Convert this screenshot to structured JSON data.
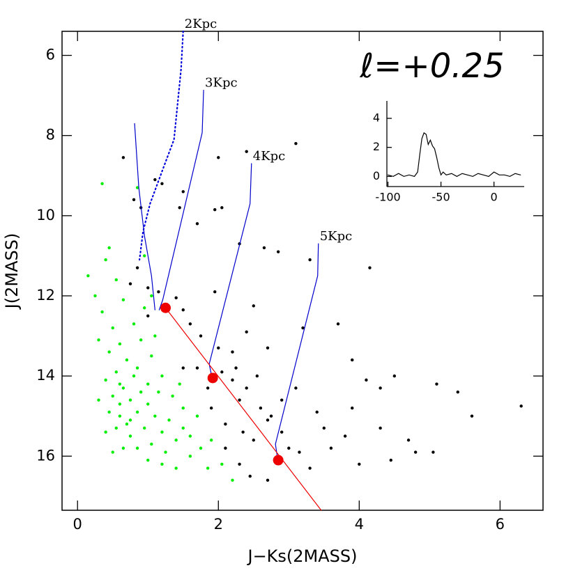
{
  "chart_data": [
    {
      "type": "scatter",
      "title": "ℓ=+0.25",
      "xlabel": "J−Ks(2MASS)",
      "ylabel": "J(2MASS)",
      "xlim": [
        -0.22,
        6.61
      ],
      "ylim": [
        5.4,
        17.35
      ],
      "y_inverted": true,
      "xticks": [
        0,
        2,
        4,
        6
      ],
      "yticks": [
        6,
        8,
        10,
        12,
        14,
        16
      ],
      "series": [
        {
          "kind": "scatter",
          "color": "#000000",
          "x": [
            0.65,
            0.8,
            0.9,
            1.1,
            1.2,
            1.5,
            1.45,
            2.0,
            3.1,
            2.4,
            1.7,
            2.05,
            1.95,
            2.3,
            2.65,
            2.85,
            3.3,
            4.15,
            0.85,
            0.75,
            1.0,
            1.15,
            1.4,
            1.5,
            1.0,
            1.95,
            2.5,
            2.4,
            1.6,
            1.75,
            2.0,
            2.2,
            2.7,
            3.2,
            3.7,
            1.5,
            1.7,
            2.05,
            2.2,
            2.4,
            2.3,
            1.9,
            2.1,
            2.6,
            2.7,
            2.5,
            2.9,
            3.1,
            3.4,
            3.0,
            3.5,
            3.9,
            3.9,
            4.1,
            4.3,
            4.5,
            4.3,
            4.7,
            5.1,
            5.05,
            5.4,
            5.6,
            6.3,
            4.0,
            4.45,
            3.3,
            2.7,
            2.3,
            2.1,
            2.45,
            3.6,
            3.8,
            4.8,
            2.75,
            2.55,
            2.25,
            1.85,
            2.9,
            3.15,
            2.35
          ],
          "y": [
            8.55,
            9.6,
            9.8,
            9.1,
            9.2,
            9.4,
            9.8,
            8.55,
            8.2,
            8.4,
            10.2,
            9.8,
            9.85,
            10.7,
            10.8,
            10.9,
            11.1,
            11.3,
            11.3,
            11.7,
            11.8,
            11.9,
            12.05,
            12.35,
            12.5,
            11.9,
            12.25,
            12.9,
            12.7,
            13.0,
            13.3,
            13.4,
            13.3,
            12.8,
            12.7,
            13.8,
            13.8,
            13.9,
            14.1,
            14.3,
            14.6,
            14.8,
            15.2,
            14.8,
            15.1,
            15.6,
            15.4,
            14.3,
            14.9,
            15.8,
            15.3,
            13.6,
            14.8,
            14.1,
            14.3,
            14.0,
            15.3,
            15.6,
            14.2,
            15.9,
            14.4,
            15.0,
            14.75,
            16.2,
            16.1,
            16.3,
            16.6,
            16.2,
            15.8,
            16.5,
            15.8,
            15.5,
            15.9,
            15.0,
            14.0,
            13.8,
            14.3,
            14.6,
            15.9,
            15.4
          ]
        },
        {
          "kind": "scatter",
          "color": "#00ee00",
          "x": [
            0.35,
            0.45,
            0.4,
            0.15,
            0.25,
            0.35,
            0.5,
            0.3,
            0.45,
            0.6,
            0.7,
            0.55,
            0.4,
            0.65,
            0.8,
            0.5,
            0.6,
            0.75,
            0.9,
            0.45,
            0.6,
            0.7,
            0.85,
            1.0,
            1.1,
            0.55,
            0.75,
            0.95,
            1.2,
            1.3,
            0.65,
            0.85,
            1.05,
            1.25,
            1.4,
            1.5,
            1.6,
            1.0,
            1.2,
            1.75,
            1.85,
            2.05,
            2.2,
            1.4,
            0.9,
            1.05,
            1.2,
            1.35,
            1.5,
            1.7,
            0.3,
            0.4,
            0.5,
            0.95,
            0.8,
            1.1,
            0.65,
            0.55,
            1.0,
            0.75,
            0.6,
            0.85,
            1.15,
            1.45,
            1.6,
            1.9,
            0.85,
            0.95,
            1.05
          ],
          "y": [
            9.2,
            10.8,
            11.1,
            11.5,
            12.0,
            12.4,
            12.8,
            13.1,
            13.4,
            13.2,
            13.6,
            13.9,
            14.1,
            14.3,
            14.0,
            14.5,
            14.7,
            14.6,
            14.4,
            14.9,
            15.0,
            15.2,
            14.9,
            14.7,
            15.0,
            15.3,
            15.5,
            15.3,
            15.4,
            15.1,
            15.8,
            15.8,
            15.7,
            15.9,
            15.6,
            15.3,
            16.0,
            16.1,
            16.2,
            15.8,
            16.3,
            16.2,
            16.6,
            16.3,
            13.1,
            13.5,
            14.0,
            14.5,
            14.8,
            15.0,
            14.6,
            15.4,
            15.9,
            12.3,
            12.7,
            13.0,
            12.1,
            11.6,
            14.2,
            15.1,
            14.2,
            13.8,
            14.4,
            14.2,
            15.5,
            15.6,
            9.3,
            11.0,
            12.0
          ]
        },
        {
          "kind": "line",
          "style": "dotted",
          "color": "#0000dd",
          "label": "2Kpc",
          "x": [
            1.5,
            1.47,
            1.37,
            1.22,
            1.03,
            0.93,
            0.88
          ],
          "y": [
            5.4,
            6.35,
            8.1,
            8.8,
            9.7,
            10.4,
            11.1
          ]
        },
        {
          "kind": "line",
          "style": "solid",
          "color": "#0000cc",
          "x": [
            0.81,
            0.87,
            0.95,
            1.05,
            1.1
          ],
          "y": [
            7.7,
            9.3,
            10.5,
            11.5,
            12.35
          ]
        },
        {
          "kind": "line",
          "style": "solid",
          "color": "#0000cc",
          "label": "3Kpc",
          "x": [
            1.79,
            1.77,
            1.21,
            1.16
          ],
          "y": [
            6.87,
            7.93,
            12.1,
            12.35
          ]
        },
        {
          "kind": "line",
          "style": "solid",
          "color": "#0000cc",
          "label": "4Kpc",
          "x": [
            2.47,
            2.45,
            1.87,
            1.91
          ],
          "y": [
            8.7,
            9.7,
            13.7,
            14.05
          ]
        },
        {
          "kind": "line",
          "style": "solid",
          "color": "#0000cc",
          "label": "5Kpc",
          "x": [
            3.42,
            3.41,
            2.81,
            2.84
          ],
          "y": [
            10.7,
            11.5,
            15.7,
            16.05
          ]
        },
        {
          "kind": "line",
          "style": "solid",
          "color": "#ee0000",
          "x": [
            1.25,
            3.46
          ],
          "y": [
            12.3,
            17.35
          ]
        },
        {
          "kind": "marker",
          "color": "#ee0000",
          "x": [
            1.25,
            1.92,
            2.85
          ],
          "y": [
            12.3,
            14.05,
            16.1
          ]
        }
      ]
    },
    {
      "type": "line",
      "xlim": [
        -101,
        28.5
      ],
      "ylim": [
        -0.7,
        5.2
      ],
      "xticks": [
        -100,
        -50,
        0
      ],
      "yticks": [
        0,
        2,
        4
      ],
      "series": [
        {
          "kind": "line",
          "style": "solid",
          "color": "#000000",
          "x": [
            -100,
            -95,
            -90,
            -85,
            -80,
            -75,
            -72,
            -70,
            -68,
            -66,
            -64,
            -62,
            -60,
            -58,
            -56,
            -54,
            -52,
            -50,
            -48,
            -45,
            -40,
            -35,
            -30,
            -25,
            -20,
            -15,
            -10,
            -5,
            0,
            5,
            10,
            15,
            20,
            25
          ],
          "y": [
            0.1,
            0,
            0.2,
            0,
            0.1,
            0,
            0.3,
            1.5,
            2.6,
            3.0,
            2.9,
            2.2,
            2.5,
            2.1,
            1.9,
            1.3,
            0.6,
            0.1,
            0.3,
            0.1,
            0.2,
            0,
            0.2,
            0.1,
            0,
            0.2,
            0.1,
            0,
            0.3,
            0.1,
            0.1,
            0,
            0.2,
            0.1
          ]
        }
      ]
    }
  ]
}
